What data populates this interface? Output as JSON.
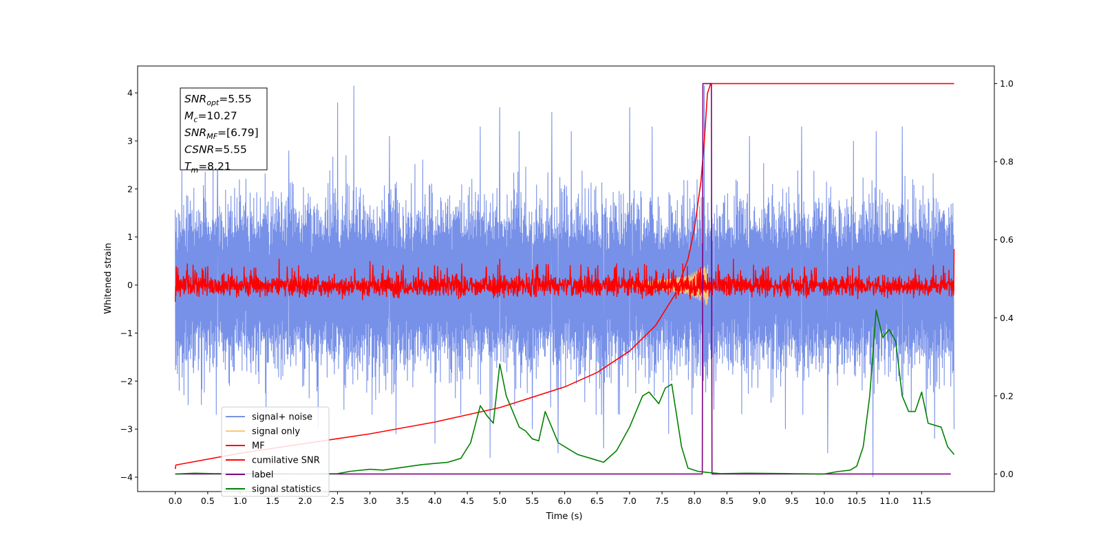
{
  "chart_data": {
    "type": "line",
    "title": "",
    "xlabel": "Time (s)",
    "ylabel": "Whitened strain",
    "y2label": "",
    "xlim": [
      -0.58,
      12.62
    ],
    "ylim": [
      -4.3,
      4.56
    ],
    "y2lim": [
      -0.045,
      1.045
    ],
    "grid": false,
    "legend_position": "lower-left",
    "x_ticks": [
      0.0,
      0.5,
      1.0,
      1.5,
      2.0,
      2.5,
      3.0,
      3.5,
      4.0,
      4.5,
      5.0,
      5.5,
      6.0,
      6.5,
      7.0,
      7.5,
      8.0,
      8.5,
      9.0,
      9.5,
      10.0,
      10.5,
      11.0,
      11.5
    ],
    "x_tick_labels": [
      "0.0",
      "0.5",
      "1.0",
      "1.5",
      "2.0",
      "2.5",
      "3.0",
      "3.5",
      "4.0",
      "4.5",
      "5.0",
      "5.5",
      "6.0",
      "6.5",
      "7.0",
      "7.5",
      "8.0",
      "8.5",
      "9.0",
      "9.5",
      "10.0",
      "10.5",
      "11.0",
      "11.5"
    ],
    "y_ticks": [
      -4,
      -3,
      -2,
      -1,
      0,
      1,
      2,
      3,
      4
    ],
    "y_tick_labels": [
      "−4",
      "−3",
      "−2",
      "−1",
      "0",
      "1",
      "2",
      "3",
      "4"
    ],
    "y2_ticks": [
      0.0,
      0.2,
      0.4,
      0.6,
      0.8,
      1.0
    ],
    "y2_tick_labels": [
      "0.0",
      "0.2",
      "0.4",
      "0.6",
      "0.8",
      "1.0"
    ],
    "info_box": [
      {
        "base": "SNR",
        "sub": "opt",
        "rest": "=5.55"
      },
      {
        "base": "M",
        "sub": "c",
        "rest": "=10.27"
      },
      {
        "base": "SNR",
        "sub": "MF",
        "rest": "=[6.79]"
      },
      {
        "base": "CSNR",
        "sub": "",
        "rest": "=5.55"
      },
      {
        "base": "T",
        "sub": "m",
        "rest": "=8.21"
      }
    ],
    "legend": [
      {
        "label": "signal+ noise",
        "color": "#7891e8"
      },
      {
        "label": "signal only",
        "color": "#f5c97a"
      },
      {
        "label": "MF",
        "color": "#ff0000"
      },
      {
        "label": "cumilative SNR",
        "color": "#ff0000"
      },
      {
        "label": "label",
        "color": "#800080"
      },
      {
        "label": "signal statistics",
        "color": "#008000"
      }
    ],
    "series": [
      {
        "name": "signal+ noise",
        "axis": "left",
        "color": "#7891e8",
        "kind": "noise_band",
        "x_range": [
          0.0,
          12.0
        ],
        "typical_range": [
          -1.7,
          1.7
        ],
        "y_peaks": [
          [
            0.1,
            2.6
          ],
          [
            0.2,
            -2.5
          ],
          [
            0.65,
            2.9
          ],
          [
            1.4,
            -2.7
          ],
          [
            1.75,
            2.8
          ],
          [
            2.2,
            -3.0
          ],
          [
            2.5,
            3.8
          ],
          [
            2.75,
            4.15
          ],
          [
            2.6,
            -2.6
          ],
          [
            3.3,
            3.1
          ],
          [
            3.4,
            -3.1
          ],
          [
            4.0,
            -3.3
          ],
          [
            4.7,
            3.3
          ],
          [
            4.85,
            -3.6
          ],
          [
            5.0,
            3.7
          ],
          [
            5.3,
            3.2
          ],
          [
            5.5,
            -3.0
          ],
          [
            5.8,
            3.6
          ],
          [
            5.9,
            -3.5
          ],
          [
            6.1,
            3.2
          ],
          [
            6.6,
            -3.4
          ],
          [
            7.0,
            3.7
          ],
          [
            7.35,
            3.3
          ],
          [
            7.6,
            -3.1
          ],
          [
            8.15,
            4.15
          ],
          [
            8.3,
            -2.6
          ],
          [
            8.85,
            3.1
          ],
          [
            9.4,
            -3.0
          ],
          [
            9.65,
            3.3
          ],
          [
            10.05,
            -3.5
          ],
          [
            10.45,
            3.0
          ],
          [
            10.75,
            -4.0
          ],
          [
            10.8,
            3.2
          ],
          [
            11.2,
            3.3
          ],
          [
            11.7,
            -3.2
          ],
          [
            12.0,
            3.1
          ],
          [
            12.0,
            -3.0
          ]
        ]
      },
      {
        "name": "signal only",
        "axis": "left",
        "color": "#f5c97a",
        "x": [
          7.0,
          7.4,
          7.7,
          7.9,
          8.0,
          8.1,
          8.21
        ],
        "y_amplitude": [
          0.05,
          0.1,
          0.15,
          0.2,
          0.28,
          0.35,
          0.45
        ]
      },
      {
        "name": "MF",
        "axis": "left",
        "color": "#ff0000",
        "kind": "noise_band",
        "x_range": [
          0.0,
          12.0
        ],
        "typical_range": [
          -0.2,
          0.3
        ],
        "y_peaks": [
          [
            0.0,
            1.0
          ],
          [
            0.0,
            -0.35
          ],
          [
            1.6,
            0.55
          ],
          [
            3.0,
            0.5
          ],
          [
            5.0,
            0.55
          ],
          [
            6.8,
            0.45
          ],
          [
            8.6,
            0.55
          ],
          [
            12.0,
            0.75
          ]
        ]
      },
      {
        "name": "cumilative SNR",
        "axis": "right",
        "color": "#ff0000",
        "x": [
          0.0,
          0.01,
          1.0,
          2.0,
          3.0,
          4.0,
          5.0,
          6.0,
          6.5,
          7.0,
          7.4,
          7.7,
          7.9,
          8.0,
          8.1,
          8.15,
          8.2,
          8.25,
          12.0
        ],
        "y": [
          0.013,
          0.023,
          0.053,
          0.078,
          0.103,
          0.133,
          0.17,
          0.223,
          0.26,
          0.315,
          0.38,
          0.46,
          0.55,
          0.63,
          0.75,
          0.85,
          0.975,
          1.0,
          1.0
        ]
      },
      {
        "name": "label",
        "axis": "right",
        "color": "#800080",
        "x": [
          0.0,
          8.12,
          8.13,
          8.26,
          8.27,
          11.95
        ],
        "y": [
          0.0,
          0.0,
          1.0,
          1.0,
          0.0,
          0.0
        ]
      },
      {
        "name": "signal statistics",
        "axis": "right",
        "color": "#008000",
        "x": [
          0.0,
          0.3,
          0.6,
          1.0,
          1.5,
          2.0,
          2.5,
          2.7,
          3.0,
          3.2,
          3.5,
          3.8,
          4.0,
          4.2,
          4.4,
          4.55,
          4.7,
          4.8,
          4.9,
          5.0,
          5.1,
          5.2,
          5.3,
          5.4,
          5.5,
          5.6,
          5.7,
          5.75,
          5.8,
          5.9,
          6.0,
          6.1,
          6.2,
          6.4,
          6.6,
          6.8,
          7.0,
          7.2,
          7.3,
          7.45,
          7.55,
          7.65,
          7.8,
          7.9,
          8.05,
          8.2,
          8.4,
          8.8,
          9.5,
          10.0,
          10.2,
          10.4,
          10.5,
          10.6,
          10.7,
          10.8,
          10.9,
          11.0,
          11.1,
          11.2,
          11.3,
          11.4,
          11.5,
          11.6,
          11.8,
          11.9,
          12.0
        ],
        "y": [
          0.0,
          0.002,
          0.001,
          0.001,
          0.001,
          0.0,
          0.001,
          0.007,
          0.012,
          0.01,
          0.017,
          0.024,
          0.027,
          0.03,
          0.04,
          0.08,
          0.175,
          0.15,
          0.13,
          0.282,
          0.2,
          0.16,
          0.12,
          0.11,
          0.09,
          0.085,
          0.16,
          0.14,
          0.12,
          0.08,
          0.07,
          0.06,
          0.05,
          0.04,
          0.03,
          0.06,
          0.12,
          0.2,
          0.21,
          0.18,
          0.22,
          0.23,
          0.07,
          0.015,
          0.007,
          0.004,
          0.001,
          0.002,
          0.001,
          0.0,
          0.006,
          0.01,
          0.02,
          0.07,
          0.2,
          0.42,
          0.35,
          0.37,
          0.34,
          0.2,
          0.16,
          0.16,
          0.21,
          0.13,
          0.12,
          0.07,
          0.05
        ]
      }
    ]
  }
}
